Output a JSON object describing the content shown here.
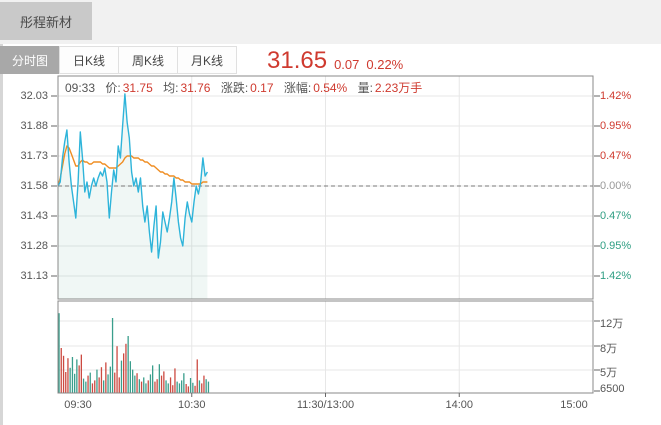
{
  "window": {
    "title": "彤程新材"
  },
  "tabs": [
    {
      "label": "分时图",
      "active": true
    },
    {
      "label": "日K线",
      "active": false
    },
    {
      "label": "周K线",
      "active": false
    },
    {
      "label": "月K线",
      "active": false
    }
  ],
  "quote": {
    "price": "31.65",
    "change": "0.07",
    "change_pct": "0.22%"
  },
  "info_bar": {
    "time": "09:33",
    "price_label": "价:",
    "price": "31.75",
    "avg_label": "均:",
    "avg": "31.76",
    "change_label": "涨跌:",
    "change": "0.17",
    "pct_label": "涨幅:",
    "pct": "0.54%",
    "volume_label": "量:",
    "volume": "2.23万手"
  },
  "colors": {
    "up_text": "#cf3a2f",
    "down_text": "#2f9e83",
    "neutral_text": "#999999",
    "price_line": "#2eb4da",
    "avg_line": "#ef8d22",
    "vol_up": "#cc4a41",
    "vol_down": "#3a9e8c",
    "fill": "rgba(63,158,131,0.08)",
    "grid": "#e7e7e7",
    "frame": "#888888"
  },
  "chart_data": {
    "type": "line",
    "title": "分时图 (intraday price/volume)",
    "session_minutes": 240,
    "x_axis": {
      "labels": [
        "09:30",
        "10:30",
        "11:30/13:00",
        "14:00",
        "15:00"
      ]
    },
    "price_axis": {
      "labels": [
        "32.03",
        "31.88",
        "31.73",
        "31.58",
        "31.43",
        "31.28",
        "31.13"
      ],
      "values": [
        32.03,
        31.88,
        31.73,
        31.58,
        31.43,
        31.28,
        31.13
      ],
      "baseline": 31.58
    },
    "pct_axis": {
      "labels": [
        {
          "text": "1.42%",
          "tone": "up"
        },
        {
          "text": "0.95%",
          "tone": "up"
        },
        {
          "text": "0.47%",
          "tone": "up"
        },
        {
          "text": "0.00%",
          "tone": "neutral"
        },
        {
          "text": "0.47%",
          "tone": "down"
        },
        {
          "text": "0.95%",
          "tone": "down"
        },
        {
          "text": "1.42%",
          "tone": "down"
        }
      ]
    },
    "volume_axis": {
      "labels": [
        "12万",
        "8万",
        "5万",
        "6500"
      ],
      "values_wan": [
        12,
        8,
        5,
        0.65
      ]
    },
    "series": [
      {
        "name": "price",
        "color_key": "price_line",
        "values": [
          31.58,
          31.6,
          31.72,
          31.8,
          31.86,
          31.7,
          31.58,
          31.5,
          31.42,
          31.6,
          31.85,
          31.72,
          31.55,
          31.6,
          31.52,
          31.58,
          31.62,
          31.58,
          31.62,
          31.65,
          31.63,
          31.67,
          31.6,
          31.42,
          31.55,
          31.66,
          31.6,
          31.78,
          31.72,
          31.88,
          32.04,
          31.9,
          31.82,
          31.65,
          31.58,
          31.62,
          31.55,
          31.62,
          31.48,
          31.4,
          31.48,
          31.35,
          31.25,
          31.38,
          31.48,
          31.22,
          31.3,
          31.45,
          31.4,
          31.35,
          31.42,
          31.5,
          31.62,
          31.52,
          31.4,
          31.32,
          31.28,
          31.42,
          31.5,
          31.44,
          31.4,
          31.5,
          31.58,
          31.54,
          31.6,
          31.72,
          31.63,
          31.65
        ]
      },
      {
        "name": "average",
        "color_key": "avg_line",
        "values": [
          31.58,
          31.62,
          31.68,
          31.74,
          31.78,
          31.77,
          31.74,
          31.71,
          31.68,
          31.68,
          31.7,
          31.71,
          31.7,
          31.7,
          31.69,
          31.69,
          31.7,
          31.7,
          31.7,
          31.7,
          31.69,
          31.69,
          31.68,
          31.67,
          31.67,
          31.67,
          31.67,
          31.68,
          31.69,
          31.7,
          31.72,
          31.73,
          31.73,
          31.73,
          31.72,
          31.72,
          31.72,
          31.71,
          31.71,
          31.7,
          31.7,
          31.69,
          31.68,
          31.68,
          31.67,
          31.66,
          31.65,
          31.65,
          31.64,
          31.64,
          31.63,
          31.63,
          31.63,
          31.62,
          31.62,
          31.61,
          31.61,
          31.6,
          31.6,
          31.6,
          31.59,
          31.59,
          31.59,
          31.59,
          31.59,
          31.6,
          31.6,
          31.6
        ]
      }
    ],
    "volume_bars": {
      "unit": "万手",
      "values": [
        13.3,
        7.5,
        6.2,
        3.5,
        5.8,
        4.2,
        6.0,
        3.2,
        5.6,
        4.6,
        6.4,
        2.4,
        1.9,
        2.9,
        3.4,
        1.6,
        2.1,
        3.9,
        2.6,
        4.3,
        2.1,
        5.1,
        3.1,
        4.4,
        12.5,
        3.4,
        7.8,
        2.6,
        5.4,
        6.6,
        8.2,
        9.5,
        5.3,
        3.9,
        2.9,
        3.3,
        2.3,
        1.9,
        2.6,
        1.6,
        2.1,
        3.1,
        4.6,
        1.9,
        2.3,
        4.8,
        2.9,
        3.6,
        2.1,
        1.6,
        2.6,
        1.3,
        4.1,
        1.9,
        1.6,
        2.1,
        3.3,
        1.5,
        1.1,
        2.5,
        1.7,
        1.2,
        5.6,
        2.1,
        1.6,
        2.9,
        2.3,
        1.9
      ],
      "dirs": [
        "d",
        "u",
        "u",
        "u",
        "u",
        "d",
        "d",
        "d",
        "d",
        "u",
        "u",
        "d",
        "d",
        "u",
        "d",
        "u",
        "u",
        "d",
        "u",
        "u",
        "d",
        "u",
        "d",
        "d",
        "d",
        "u",
        "u",
        "u",
        "d",
        "u",
        "u",
        "d",
        "d",
        "d",
        "d",
        "u",
        "d",
        "u",
        "d",
        "d",
        "u",
        "d",
        "d",
        "u",
        "u",
        "d",
        "u",
        "u",
        "d",
        "d",
        "u",
        "u",
        "u",
        "d",
        "d",
        "d",
        "d",
        "u",
        "u",
        "d",
        "d",
        "u",
        "u",
        "d",
        "u",
        "u",
        "d",
        "d"
      ]
    }
  }
}
